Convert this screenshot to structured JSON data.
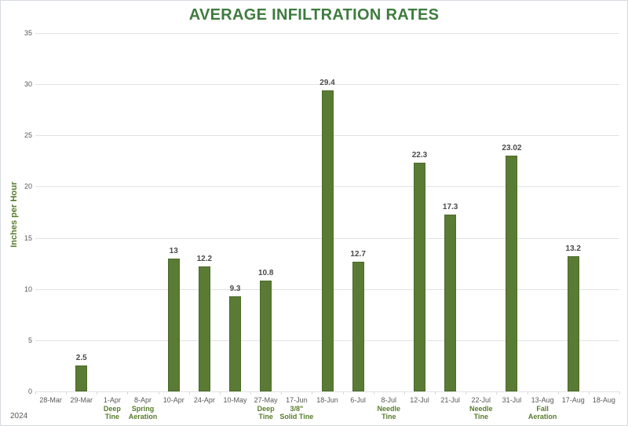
{
  "title": "AVERAGE INFILTRATION RATES",
  "footer_year": "2024",
  "colors": {
    "title_color": "#3e7b3e",
    "annotation_color": "#567d2b",
    "tick_color": "#595959",
    "value_label_color": "#4a4a4a",
    "gridline_color": "#e2e2e2",
    "axis_color": "#d9d9d9",
    "bar_color": "#5a7b34",
    "bar_border_color": "#4c6a2c"
  },
  "chart_data": {
    "type": "bar",
    "title": "AVERAGE INFILTRATION RATES",
    "xlabel": "2024",
    "ylabel": "Inches per Hour",
    "ylim": [
      0,
      35
    ],
    "ytick_step": 5,
    "yticks": [
      0,
      5,
      10,
      15,
      20,
      25,
      30,
      35
    ],
    "grid": "horizontal",
    "legend": "none",
    "categories": [
      "28-Mar",
      "29-Mar",
      "1-Apr",
      "8-Apr",
      "10-Apr",
      "24-Apr",
      "10-May",
      "27-May",
      "17-Jun",
      "18-Jun",
      "6-Jul",
      "8-Jul",
      "12-Jul",
      "21-Jul",
      "22-Jul",
      "31-Jul",
      "13-Aug",
      "17-Aug",
      "18-Aug"
    ],
    "annotations": [
      "",
      "",
      "Deep\nTine",
      "Spring\nAeration",
      "",
      "",
      "",
      "Deep\nTine",
      "3/8\"\nSolid Tine",
      "",
      "",
      "Needle\nTine",
      "",
      "",
      "Needle\nTine",
      "",
      "Fall\nAeration",
      "",
      ""
    ],
    "values": [
      null,
      2.5,
      null,
      null,
      13,
      12.2,
      9.3,
      10.8,
      null,
      29.4,
      12.7,
      null,
      22.3,
      17.3,
      null,
      23.02,
      null,
      13.2,
      null
    ],
    "value_labels": [
      "",
      "2.5",
      "",
      "",
      "13",
      "12.2",
      "9.3",
      "10.8",
      "",
      "29.4",
      "12.7",
      "",
      "22.3",
      "17.3",
      "",
      "23.02",
      "",
      "13.2",
      ""
    ]
  }
}
